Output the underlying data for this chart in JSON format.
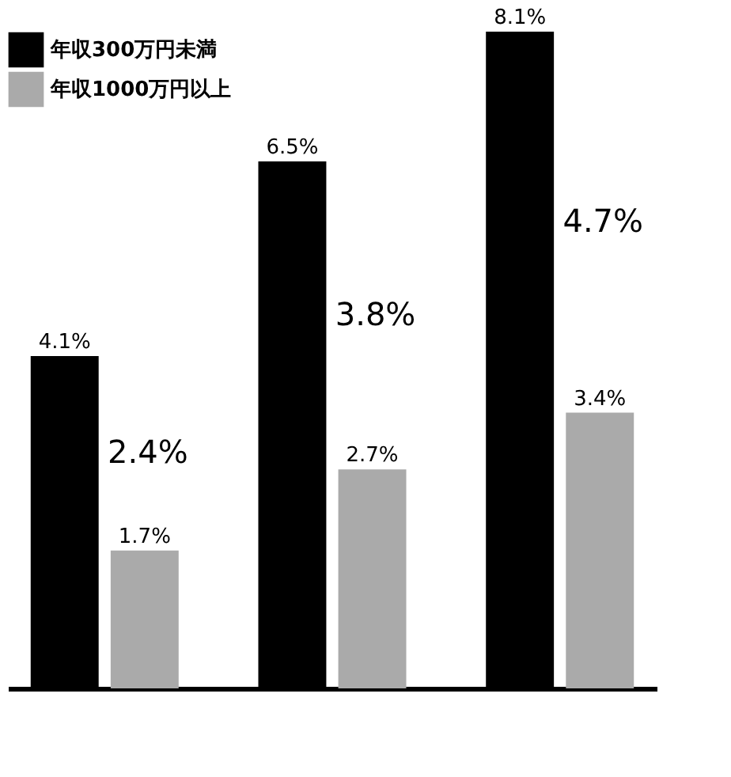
{
  "chart_data": {
    "type": "bar",
    "categories": [
      null,
      null,
      null
    ],
    "series": [
      {
        "name": "年収300万円未満",
        "color": "#000000",
        "values": [
          4.1,
          6.5,
          8.1
        ],
        "value_labels": [
          "4.1%",
          "6.5%",
          "8.1%"
        ]
      },
      {
        "name": "年収1000万円以上",
        "color": "#aaaaaa",
        "values": [
          1.7,
          2.7,
          3.4
        ],
        "value_labels": [
          "1.7%",
          "2.7%",
          "3.4%"
        ]
      }
    ],
    "annotations": [
      "2.4%",
      "3.8%",
      "4.7%"
    ],
    "legend": "top left",
    "grid": false,
    "tick_labels": false
  }
}
